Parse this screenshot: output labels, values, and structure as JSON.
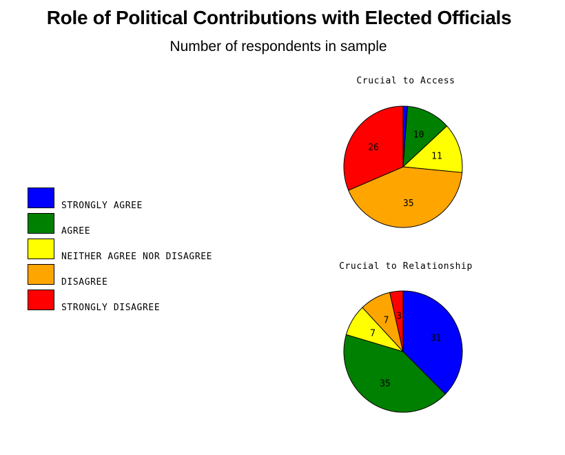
{
  "chart_data": {
    "type": "pie",
    "title": "Role of Political Contributions with Elected Officials",
    "subtitle": "Number of respondents in sample",
    "legend": {
      "placement": "left",
      "entries": [
        {
          "label": "STRONGLY AGREE",
          "color": "#0000ff"
        },
        {
          "label": "AGREE",
          "color": "#008000"
        },
        {
          "label": "NEITHER AGREE NOR DISAGREE",
          "color": "#ffff00"
        },
        {
          "label": "DISAGREE",
          "color": "#ffa500"
        },
        {
          "label": "STRONGLY DISAGREE",
          "color": "#ff0000"
        }
      ]
    },
    "pies": [
      {
        "title": "Crucial to Access",
        "slices": [
          {
            "category": "STRONGLY AGREE",
            "value": 1,
            "label": ""
          },
          {
            "category": "AGREE",
            "value": 10,
            "label": "10"
          },
          {
            "category": "NEITHER AGREE NOR DISAGREE",
            "value": 11,
            "label": "11"
          },
          {
            "category": "DISAGREE",
            "value": 35,
            "label": "35"
          },
          {
            "category": "STRONGLY DISAGREE",
            "value": 26,
            "label": "26"
          }
        ]
      },
      {
        "title": "Crucial to Relationship",
        "slices": [
          {
            "category": "STRONGLY AGREE",
            "value": 31,
            "label": "31"
          },
          {
            "category": "AGREE",
            "value": 35,
            "label": "35"
          },
          {
            "category": "NEITHER AGREE NOR DISAGREE",
            "value": 7,
            "label": "7"
          },
          {
            "category": "DISAGREE",
            "value": 7,
            "label": "7"
          },
          {
            "category": "STRONGLY DISAGREE",
            "value": 3,
            "label": "3"
          }
        ]
      }
    ]
  }
}
